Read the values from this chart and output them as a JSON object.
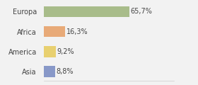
{
  "categories": [
    "Europa",
    "Africa",
    "America",
    "Asia"
  ],
  "values": [
    65.7,
    16.3,
    9.2,
    8.8
  ],
  "labels": [
    "65,7%",
    "16,3%",
    "9,2%",
    "8,8%"
  ],
  "bar_colors": [
    "#a8bc8a",
    "#e8aa78",
    "#e8d070",
    "#8898c8"
  ],
  "background_color": "#f2f2f2",
  "xlim": [
    0,
    100
  ],
  "label_fontsize": 7.0,
  "tick_fontsize": 7.0,
  "bar_height": 0.55
}
